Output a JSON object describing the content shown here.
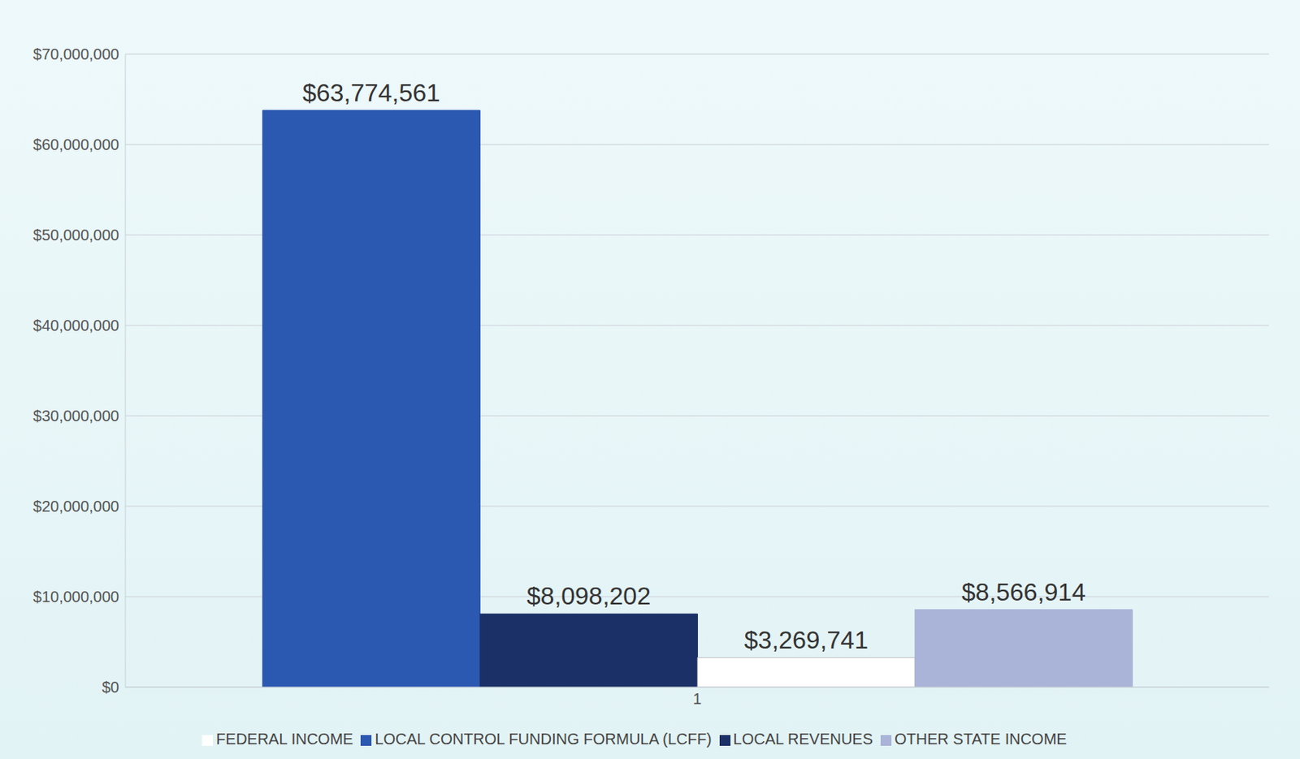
{
  "chart_data": {
    "type": "bar",
    "categories": [
      "1"
    ],
    "series": [
      {
        "name": "LOCAL CONTROL FUNDING FORMULA (LCFF)",
        "color": "#2b58b0",
        "values": [
          63774561
        ],
        "value_labels": [
          "$63,774,561"
        ]
      },
      {
        "name": "LOCAL REVENUES",
        "color": "#1b3066",
        "values": [
          8098202
        ],
        "value_labels": [
          "$8,098,202"
        ]
      },
      {
        "name": "FEDERAL INCOME",
        "color": "#ffffff",
        "values": [
          3269741
        ],
        "value_labels": [
          "$3,269,741"
        ]
      },
      {
        "name": "OTHER STATE INCOME",
        "color": "#aab4d8",
        "values": [
          8566914
        ],
        "value_labels": [
          "$8,566,914"
        ]
      }
    ],
    "ylim": [
      0,
      70000000
    ],
    "yticks": [
      {
        "value": 0,
        "label": "$0"
      },
      {
        "value": 10000000,
        "label": "$10,000,000"
      },
      {
        "value": 20000000,
        "label": "$20,000,000"
      },
      {
        "value": 30000000,
        "label": "$30,000,000"
      },
      {
        "value": 40000000,
        "label": "$40,000,000"
      },
      {
        "value": 50000000,
        "label": "$50,000,000"
      },
      {
        "value": 60000000,
        "label": "$60,000,000"
      },
      {
        "value": 70000000,
        "label": "$70,000,000"
      }
    ],
    "grid": true,
    "legend": "bottom",
    "data_labels": true
  }
}
